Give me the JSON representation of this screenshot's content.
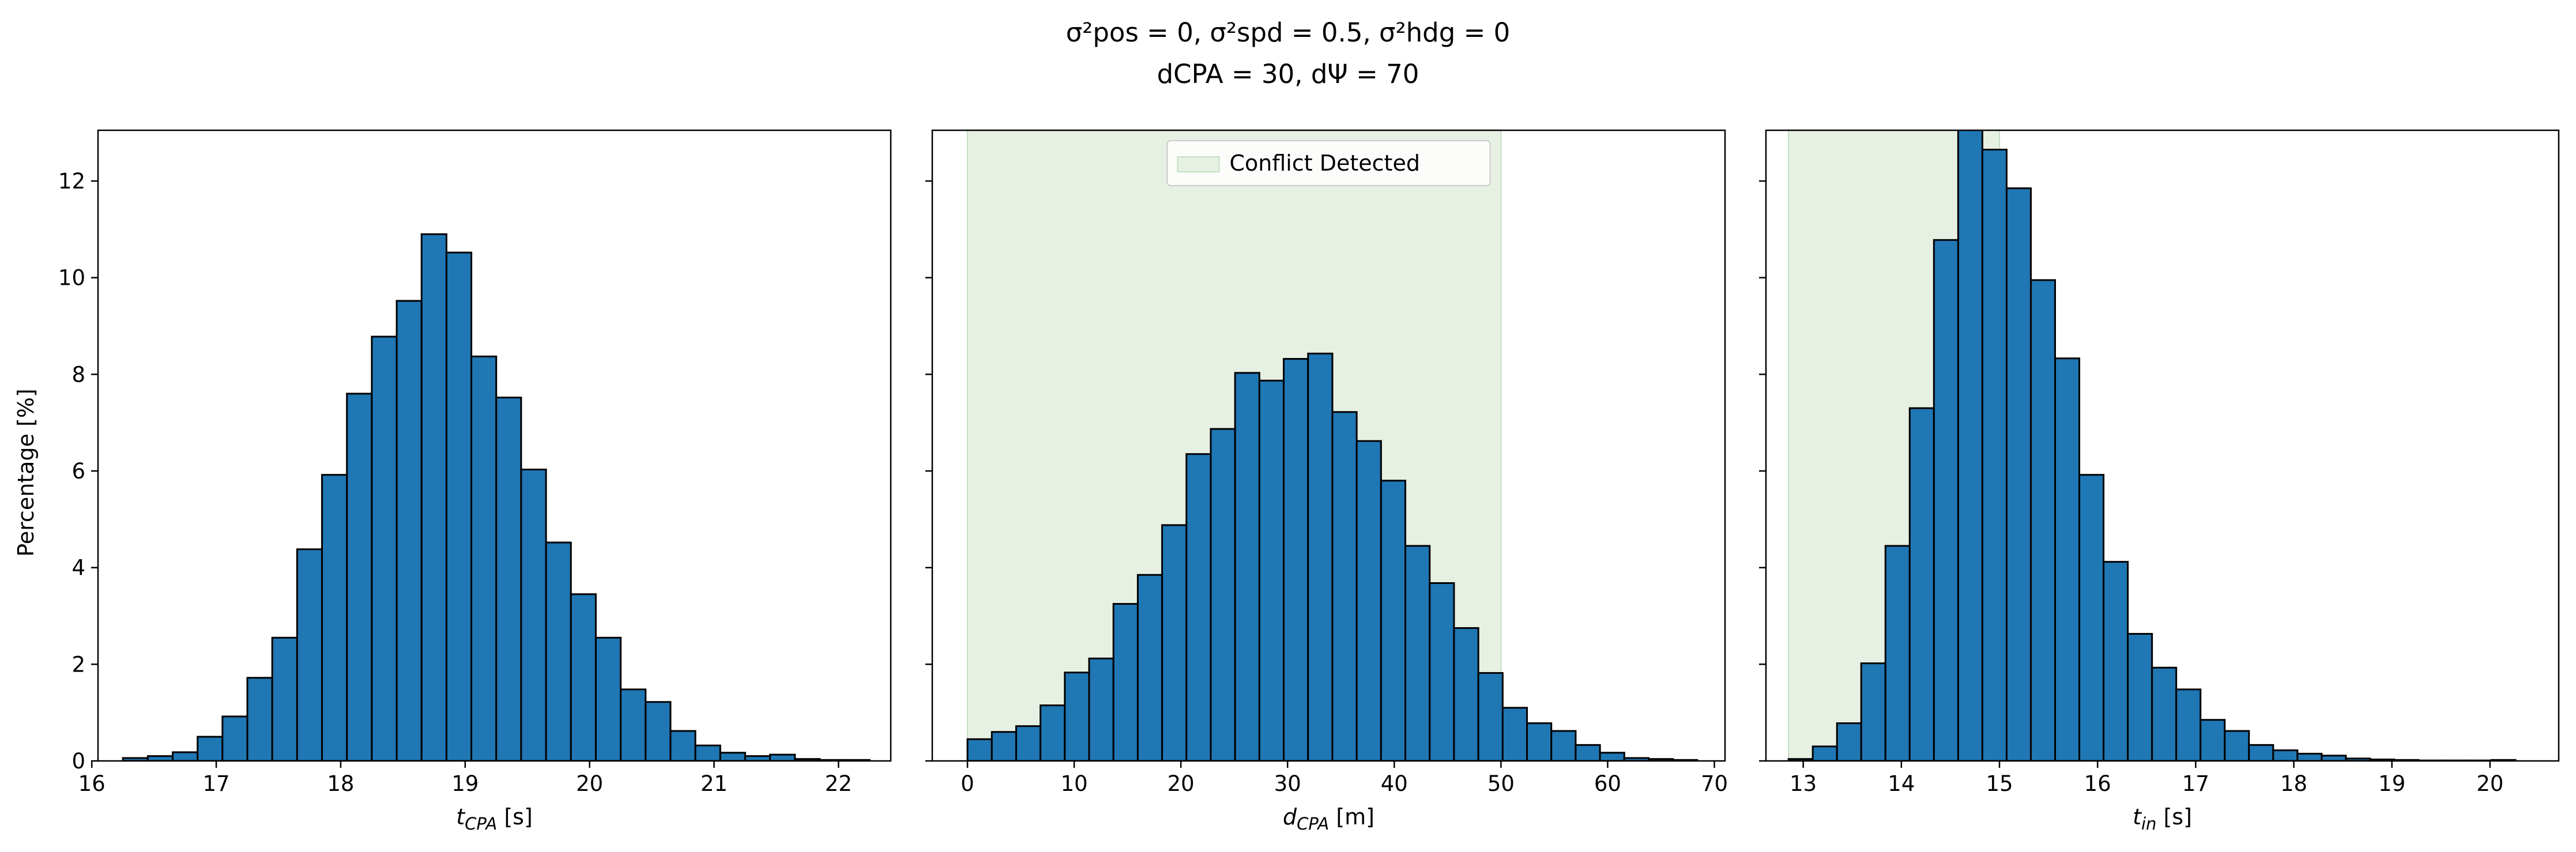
{
  "figure": {
    "title_line1": "σ²pos = 0, σ²spd = 0.5, σ²hdg = 0",
    "title_line2": "dCPA = 30, dΨ = 70",
    "ylabel": "Percentage [%]",
    "colors": {
      "bar_fill": "#1f77b4",
      "bar_edge": "#000000",
      "span_fill": "#e6f1e4",
      "span_edge": "#c3dfc0"
    }
  },
  "chart_data": [
    {
      "type": "bar",
      "title": "",
      "xlabel": "t_CPA [s]",
      "xlabel_main": "t",
      "xlabel_sub": "CPA",
      "xlabel_unit": " [s]",
      "ylabel": "Percentage [%]",
      "xlim": [
        16.05,
        22.42
      ],
      "ylim": [
        0,
        13.05
      ],
      "xticks": [
        16,
        17,
        18,
        19,
        20,
        21,
        22
      ],
      "yticks": [
        0,
        2,
        4,
        6,
        8,
        10,
        12
      ],
      "bin_start": 16.25,
      "bin_width": 0.2,
      "values": [
        0.06,
        0.1,
        0.18,
        0.5,
        0.92,
        1.72,
        2.55,
        4.38,
        5.92,
        7.6,
        8.78,
        9.52,
        10.9,
        10.52,
        8.37,
        7.52,
        6.03,
        4.52,
        3.45,
        2.55,
        1.48,
        1.22,
        0.62,
        0.32,
        0.17,
        0.1,
        0.13,
        0.04,
        0.02,
        0.02
      ],
      "shaded_span": null,
      "legend": null
    },
    {
      "type": "bar",
      "title": "",
      "xlabel": "d_CPA [m]",
      "xlabel_main": "d",
      "xlabel_sub": "CPA",
      "xlabel_unit": " [m]",
      "xlim": [
        -3.3,
        71.0
      ],
      "ylim": [
        0,
        13.05
      ],
      "xticks": [
        0,
        10,
        20,
        30,
        40,
        50,
        60,
        70
      ],
      "yticks": [
        0,
        2,
        4,
        6,
        8,
        10,
        12
      ],
      "bin_start": 0.0,
      "bin_width": 2.28,
      "values": [
        0.45,
        0.6,
        0.72,
        1.15,
        1.83,
        2.12,
        3.25,
        3.85,
        4.88,
        6.35,
        6.87,
        8.03,
        7.87,
        8.32,
        8.43,
        7.22,
        6.62,
        5.8,
        4.45,
        3.68,
        2.75,
        1.82,
        1.1,
        0.78,
        0.62,
        0.33,
        0.17,
        0.06,
        0.04,
        0.02
      ],
      "shaded_span": [
        0,
        50
      ],
      "legend": {
        "label": "Conflict Detected",
        "placement": "upper center"
      }
    },
    {
      "type": "bar",
      "title": "",
      "xlabel": "t_in [s]",
      "xlabel_main": "t",
      "xlabel_sub": "in",
      "xlabel_unit": " [s]",
      "xlim": [
        12.62,
        20.7
      ],
      "ylim": [
        0,
        13.05
      ],
      "xticks": [
        13,
        14,
        15,
        16,
        17,
        18,
        19,
        20
      ],
      "yticks": [
        0,
        2,
        4,
        6,
        8,
        10,
        12
      ],
      "bin_start": 12.85,
      "bin_width": 0.247,
      "values": [
        0.04,
        0.3,
        0.78,
        2.02,
        4.45,
        7.3,
        10.78,
        13.15,
        12.65,
        11.85,
        9.95,
        8.33,
        5.92,
        4.12,
        2.63,
        1.93,
        1.48,
        0.85,
        0.62,
        0.33,
        0.22,
        0.15,
        0.11,
        0.05,
        0.03,
        0.02,
        0.01,
        0.01,
        0.01,
        0.02
      ],
      "shaded_span": [
        12.85,
        15.0
      ],
      "legend": null
    }
  ]
}
